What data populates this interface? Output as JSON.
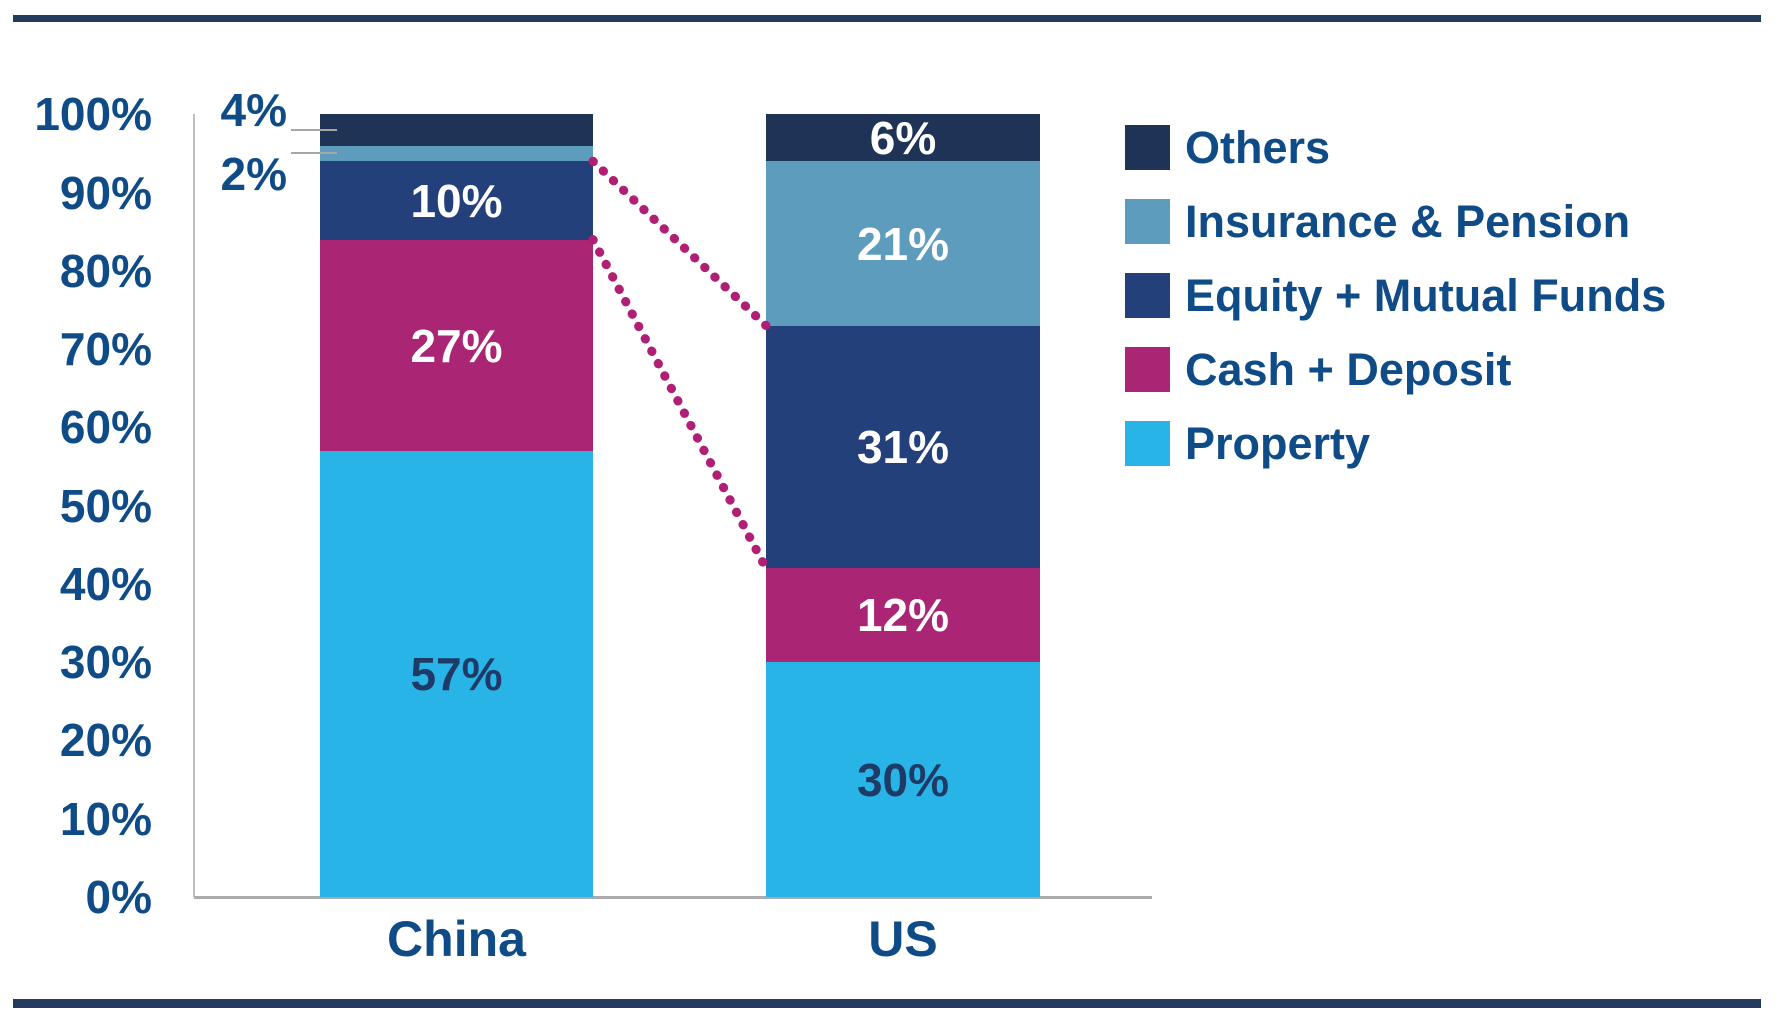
{
  "colors": {
    "background": "#FFFFFF",
    "border_rule": "#253A5F",
    "axis_text": "#0E4B87",
    "axis_line": "#BFBFBF",
    "baseline": "#ABABAB",
    "leader_line": "#A6A6A6",
    "dark_label": "#1E3A66",
    "light_label": "#FFFFFF",
    "connector": "#B01F74"
  },
  "chart_data": {
    "type": "bar",
    "stacked": true,
    "title": "",
    "categories": [
      "China",
      "US"
    ],
    "series_bottom_to_top": [
      {
        "name": "Property",
        "color": "#29B4E7",
        "values": [
          57,
          30
        ],
        "labels": [
          "57%",
          "30%"
        ],
        "label_inside": [
          true,
          true
        ],
        "label_tone": "dark"
      },
      {
        "name": "Cash + Deposit",
        "color": "#AA2573",
        "values": [
          27,
          12
        ],
        "labels": [
          "27%",
          "12%"
        ],
        "label_inside": [
          true,
          true
        ],
        "label_tone": "light"
      },
      {
        "name": "Equity + Mutual Funds",
        "color": "#23407A",
        "values": [
          10,
          31
        ],
        "labels": [
          "10%",
          "31%"
        ],
        "label_inside": [
          true,
          true
        ],
        "label_tone": "light"
      },
      {
        "name": "Insurance & Pension",
        "color": "#5E9CBD",
        "values": [
          2,
          21
        ],
        "labels": [
          "2%",
          "21%"
        ],
        "label_inside": [
          false,
          true
        ],
        "label_tone": "light"
      },
      {
        "name": "Others",
        "color": "#1E3356",
        "values": [
          4,
          6
        ],
        "labels": [
          "4%",
          "6%"
        ],
        "label_inside": [
          false,
          true
        ],
        "label_tone": "light"
      }
    ],
    "ylim": [
      0,
      100
    ],
    "y_tick_labels": [
      "0%",
      "10%",
      "20%",
      "30%",
      "40%",
      "50%",
      "60%",
      "70%",
      "80%",
      "90%",
      "100%"
    ],
    "x_tick_labels": [
      "China",
      "US"
    ],
    "outside_annotations": [
      {
        "text": "4%",
        "series": "Others",
        "category": "China"
      },
      {
        "text": "2%",
        "series": "Insurance & Pension",
        "category": "China"
      }
    ],
    "connectors": [
      {
        "series": "Equity + Mutual Funds",
        "edge": "top",
        "from": "China",
        "to": "US"
      },
      {
        "series": "Equity + Mutual Funds",
        "edge": "bottom",
        "from": "China",
        "to": "US"
      }
    ],
    "legend_position": "right",
    "grid": false
  },
  "legend": {
    "items": [
      {
        "label": "Others",
        "color": "#1E3356"
      },
      {
        "label": "Insurance & Pension",
        "color": "#5E9CBD"
      },
      {
        "label": "Equity + Mutual Funds",
        "color": "#23407A"
      },
      {
        "label": "Cash + Deposit",
        "color": "#AA2573"
      },
      {
        "label": "Property",
        "color": "#29B4E7"
      }
    ]
  }
}
